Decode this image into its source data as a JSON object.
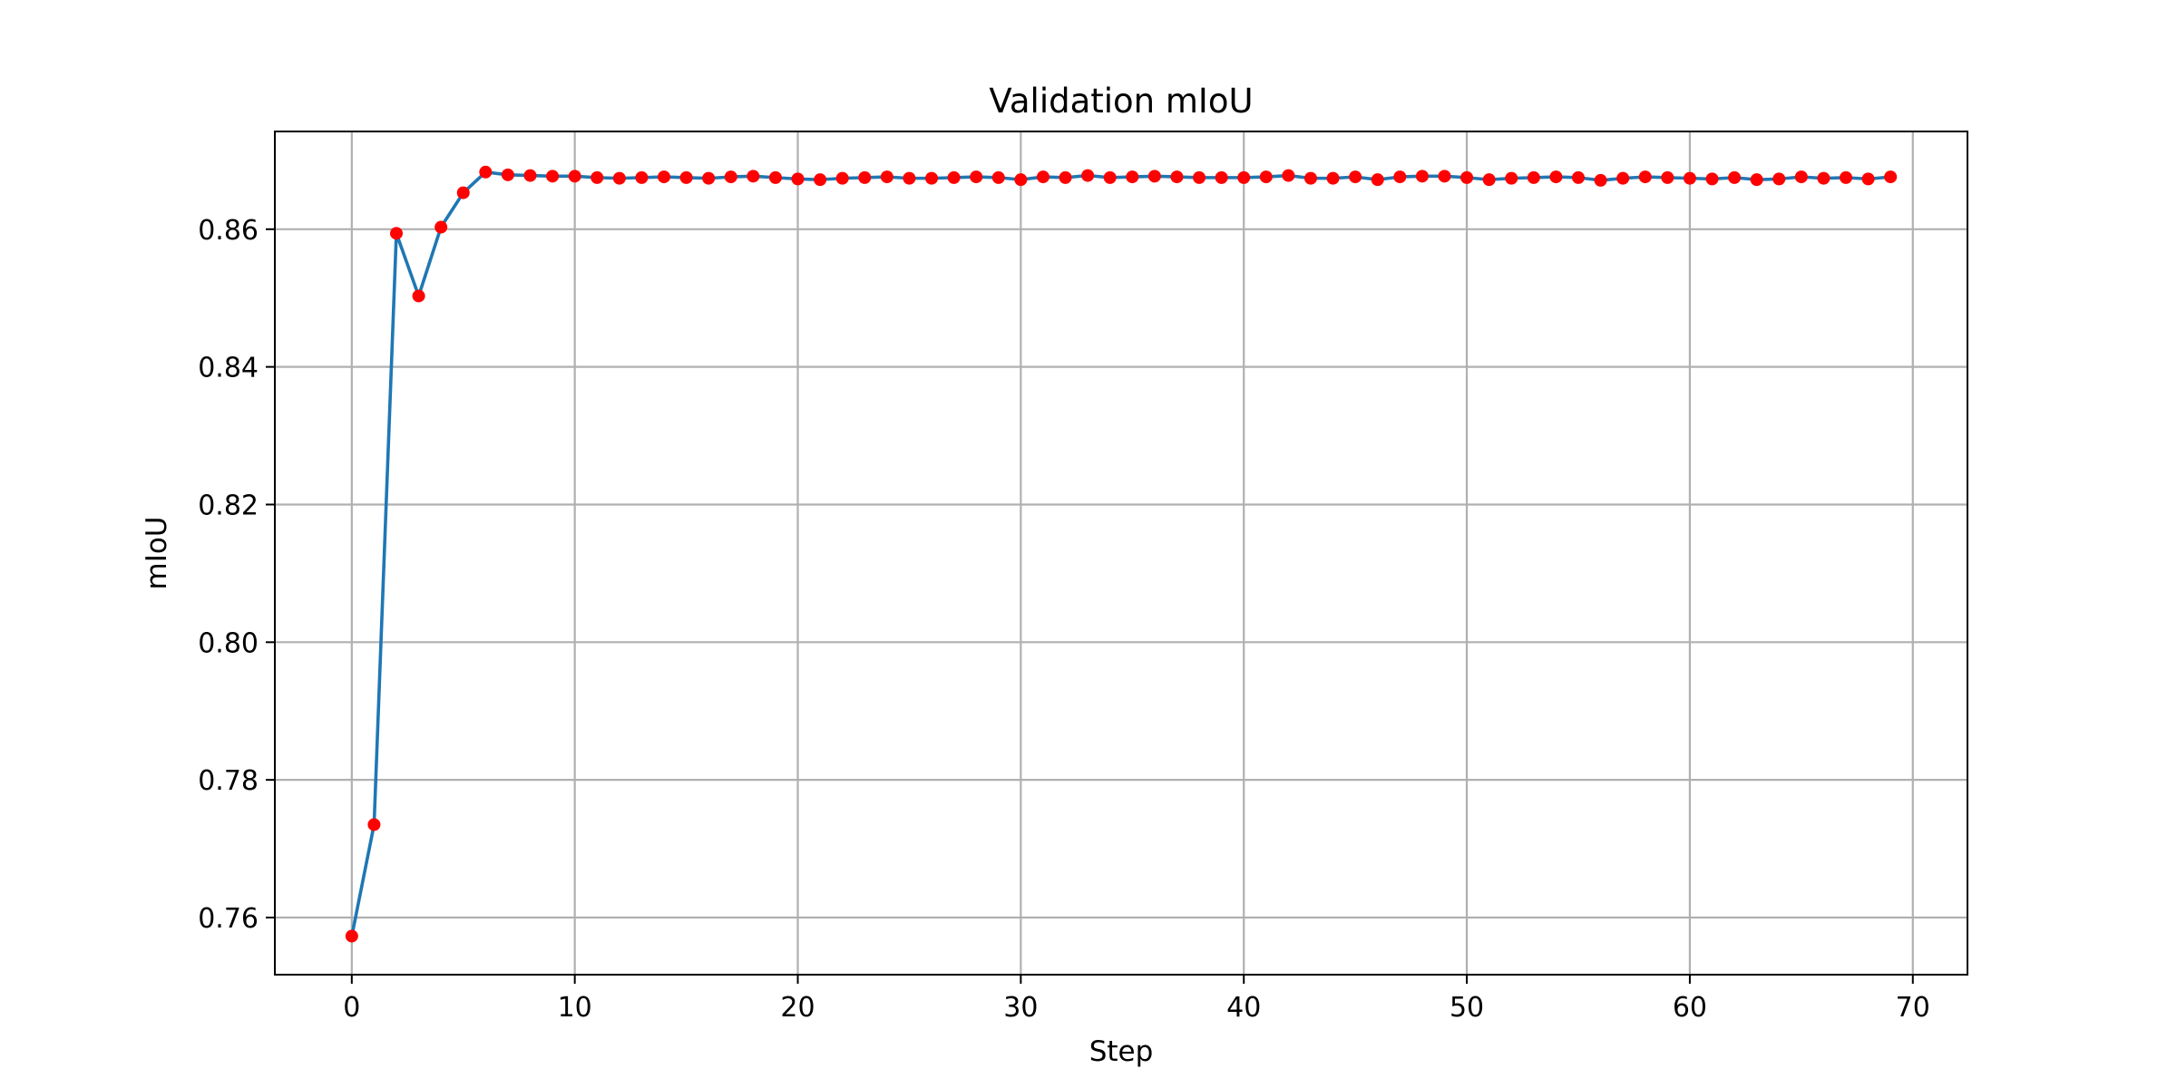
{
  "chart_data": {
    "type": "line",
    "title": "Validation mIoU",
    "xlabel": "Step",
    "ylabel": "mIoU",
    "xlim": [
      -3.45,
      72.45
    ],
    "ylim": [
      0.7517,
      0.8742
    ],
    "xticks": [
      0,
      10,
      20,
      30,
      40,
      50,
      60,
      70
    ],
    "yticks": [
      0.76,
      0.78,
      0.8,
      0.82,
      0.84,
      0.86
    ],
    "ytick_labels": [
      "0.76",
      "0.78",
      "0.80",
      "0.82",
      "0.84",
      "0.86"
    ],
    "grid": true,
    "colors": {
      "line": "#1f77b4",
      "marker": "#ff0000",
      "grid": "#b0b0b0"
    },
    "x": [
      0,
      1,
      2,
      3,
      4,
      5,
      6,
      7,
      8,
      9,
      10,
      11,
      12,
      13,
      14,
      15,
      16,
      17,
      18,
      19,
      20,
      21,
      22,
      23,
      24,
      25,
      26,
      27,
      28,
      29,
      30,
      31,
      32,
      33,
      34,
      35,
      36,
      37,
      38,
      39,
      40,
      41,
      42,
      43,
      44,
      45,
      46,
      47,
      48,
      49,
      50,
      51,
      52,
      53,
      54,
      55,
      56,
      57,
      58,
      59,
      60,
      61,
      62,
      63,
      64,
      65,
      66,
      67,
      68,
      69
    ],
    "series": [
      {
        "values": [
          0.7573,
          0.7735,
          0.8594,
          0.8503,
          0.8603,
          0.8653,
          0.8683,
          0.8679,
          0.8678,
          0.8677,
          0.8677,
          0.8675,
          0.8674,
          0.8675,
          0.8676,
          0.8675,
          0.8674,
          0.8676,
          0.8677,
          0.8675,
          0.8673,
          0.8672,
          0.8674,
          0.8675,
          0.8676,
          0.8674,
          0.8674,
          0.8675,
          0.8676,
          0.8675,
          0.8672,
          0.8676,
          0.8675,
          0.8678,
          0.8675,
          0.8676,
          0.8677,
          0.8676,
          0.8675,
          0.8675,
          0.8675,
          0.8676,
          0.8678,
          0.8674,
          0.8674,
          0.8676,
          0.8672,
          0.8676,
          0.8677,
          0.8677,
          0.8675,
          0.8672,
          0.8674,
          0.8675,
          0.8676,
          0.8675,
          0.8671,
          0.8674,
          0.8676,
          0.8675,
          0.8674,
          0.8673,
          0.8675,
          0.8672,
          0.8673,
          0.8676,
          0.8674,
          0.8675,
          0.8673,
          0.8676
        ]
      }
    ]
  }
}
